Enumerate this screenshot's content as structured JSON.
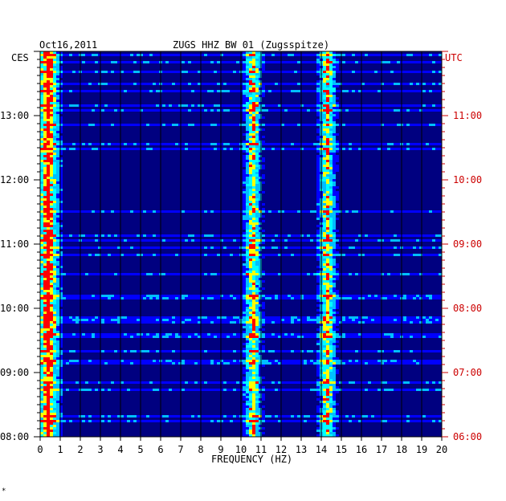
{
  "chart_data": {
    "type": "heatmap",
    "title_date": "Oct16,2011",
    "title": "ZUGS HHZ BW 01 (Zugsspitze)",
    "xlabel": "FREQUENCY (HZ)",
    "x_ticks": [
      "0",
      "1",
      "2",
      "3",
      "4",
      "5",
      "6",
      "7",
      "8",
      "9",
      "10",
      "11",
      "12",
      "13",
      "14",
      "15",
      "16",
      "17",
      "18",
      "19",
      "20"
    ],
    "xlim": [
      0,
      20
    ],
    "left_axis": {
      "label": "CES",
      "ticks": [
        "13:00",
        "12:00",
        "11:00",
        "10:00",
        "09:00",
        "08:00"
      ],
      "color": "#000000"
    },
    "right_axis": {
      "label": "UTC",
      "ticks": [
        "11:00",
        "10:00",
        "09:00",
        "08:00",
        "07:00",
        "06:00"
      ],
      "color": "#cc0000"
    },
    "time_range_local": [
      "08:00",
      "14:00"
    ],
    "footer_mark": "*",
    "colormap": [
      "#00008b",
      "#0000ff",
      "#00bfff",
      "#00ffff",
      "#ffff00",
      "#ff0000"
    ],
    "background_color": "#000080",
    "energy_bands_hz": [
      0.4,
      10.6,
      14.3
    ]
  }
}
